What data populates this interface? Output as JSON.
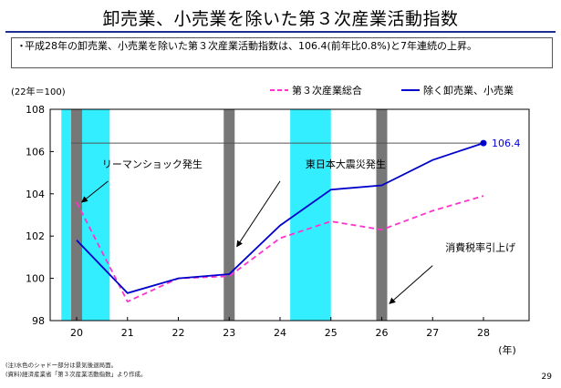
{
  "title": "卸売業、小売業を除いた第３次産業活動指数",
  "summary": {
    "bullet": "・",
    "text": "平成28年の卸売業、小売業を除いた第３次産業活動指数は、106.4(前年比0.8%)と7年連続の上昇。"
  },
  "notes": [
    "(注)水色のシャドー部分は景気後退局面。",
    "(資料)経済産業省「第３次産業活動指数」より作成。"
  ],
  "page_number": "29",
  "chart_data": {
    "type": "line",
    "index_note": "(22年＝100)",
    "x_unit": "(年)",
    "categories": [
      "20",
      "21",
      "22",
      "23",
      "24",
      "25",
      "26",
      "27",
      "28"
    ],
    "ylim": [
      98,
      108
    ],
    "yticks": [
      "98",
      "100",
      "102",
      "104",
      "106",
      "108"
    ],
    "series": [
      {
        "name": "第３次産業総合",
        "color": "#ff33cc",
        "style": "dashed",
        "points": [
          [
            20,
            103.6
          ],
          [
            21,
            98.9
          ],
          [
            22,
            100.0
          ],
          [
            23,
            100.1
          ],
          [
            24,
            101.9
          ],
          [
            25,
            102.7
          ],
          [
            26,
            102.3
          ],
          [
            27,
            103.2
          ],
          [
            28,
            103.9
          ]
        ]
      },
      {
        "name": "除く卸売業、小売業",
        "color": "#0000cc",
        "style": "solid",
        "points": [
          [
            20,
            101.8
          ],
          [
            21,
            99.3
          ],
          [
            22,
            100.0
          ],
          [
            23,
            100.2
          ],
          [
            24,
            102.5
          ],
          [
            25,
            104.2
          ],
          [
            26,
            104.4
          ],
          [
            27,
            105.6
          ],
          [
            28,
            106.4
          ]
        ]
      }
    ],
    "recession_shading": [
      [
        19.7,
        20.65
      ],
      [
        24.2,
        25.0
      ]
    ],
    "event_bars": [
      20.0,
      23.0,
      26.0
    ],
    "reference_line": 106.4,
    "end_label": "106.4",
    "annotations": [
      {
        "text": "リーマンショック発生",
        "x": 20.5,
        "y": 105.2,
        "arrow_to": [
          20.1,
          103.6
        ]
      },
      {
        "text": "東日本大震災発生",
        "x": 24.8,
        "y": 105.2,
        "arrow_to": [
          23.15,
          101.5
        ]
      },
      {
        "text": "消費税率引上げ",
        "x": 27.2,
        "y": 101.3,
        "arrow_to": [
          26.15,
          98.8
        ]
      }
    ],
    "colors": {
      "shading": "#33eeff",
      "event_bar": "#777777",
      "reference_line": "#555555"
    }
  }
}
